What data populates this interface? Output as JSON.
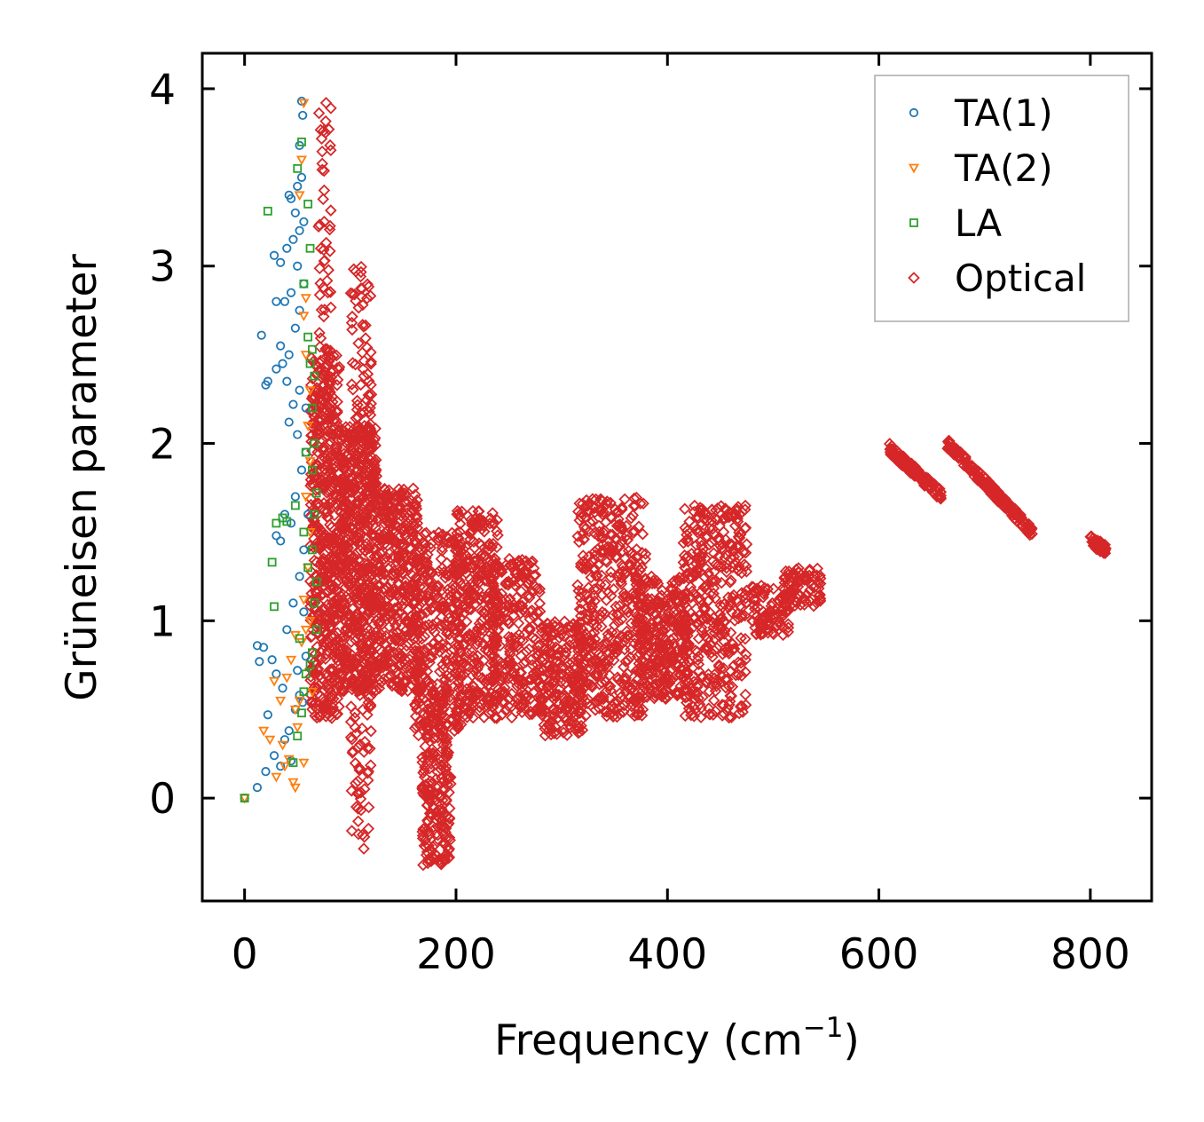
{
  "chart_data": {
    "type": "scatter",
    "title": "",
    "xlabel": "Frequency (cm",
    "xlabel_sup": "−1",
    "xlabel_end": ")",
    "ylabel": "Grüneisen parameter",
    "xlim": [
      -40,
      858
    ],
    "ylim": [
      -0.58,
      4.2
    ],
    "xticks": [
      0,
      200,
      400,
      600,
      800
    ],
    "xtick_labels": [
      "0",
      "200",
      "400",
      "600",
      "800"
    ],
    "yticks": [
      0,
      1,
      2,
      3,
      4
    ],
    "ytick_labels": [
      "0",
      "1",
      "2",
      "3",
      "4"
    ],
    "grid": false,
    "legend_position": "top-right",
    "series": [
      {
        "name": "TA(1)",
        "marker": "circle",
        "color": "#1f77b4",
        "points": [
          [
            0,
            0
          ],
          [
            12,
            0.06
          ],
          [
            20,
            0.15
          ],
          [
            28,
            0.24
          ],
          [
            34,
            0.18
          ],
          [
            38,
            0.33
          ],
          [
            42,
            0.38
          ],
          [
            44,
            0.21
          ],
          [
            48,
            0.5
          ],
          [
            36,
            0.62
          ],
          [
            30,
            0.7
          ],
          [
            26,
            0.78
          ],
          [
            22,
            0.47
          ],
          [
            18,
            0.85
          ],
          [
            12,
            0.86
          ],
          [
            14,
            0.77
          ],
          [
            50,
            0.72
          ],
          [
            52,
            0.58
          ],
          [
            55,
            0.54
          ],
          [
            58,
            0.8
          ],
          [
            40,
            0.95
          ],
          [
            46,
            1.1
          ],
          [
            52,
            1.25
          ],
          [
            56,
            1.4
          ],
          [
            44,
            1.55
          ],
          [
            38,
            1.6
          ],
          [
            30,
            1.48
          ],
          [
            34,
            1.45
          ],
          [
            48,
            1.7
          ],
          [
            54,
            1.85
          ],
          [
            58,
            1.95
          ],
          [
            50,
            2.05
          ],
          [
            42,
            2.12
          ],
          [
            46,
            2.22
          ],
          [
            52,
            2.3
          ],
          [
            40,
            2.35
          ],
          [
            36,
            2.45
          ],
          [
            30,
            2.42
          ],
          [
            20,
            2.33
          ],
          [
            16,
            2.61
          ],
          [
            22,
            2.35
          ],
          [
            34,
            2.55
          ],
          [
            42,
            2.5
          ],
          [
            48,
            2.65
          ],
          [
            52,
            2.75
          ],
          [
            38,
            2.8
          ],
          [
            30,
            2.8
          ],
          [
            44,
            2.85
          ],
          [
            56,
            2.9
          ],
          [
            28,
            3.06
          ],
          [
            34,
            3.02
          ],
          [
            40,
            3.1
          ],
          [
            46,
            3.15
          ],
          [
            52,
            3.2
          ],
          [
            56,
            3.25
          ],
          [
            48,
            3.3
          ],
          [
            42,
            3.4
          ],
          [
            50,
            3.45
          ],
          [
            54,
            3.5
          ],
          [
            44,
            3.38
          ],
          [
            52,
            3.68
          ],
          [
            55,
            3.85
          ],
          [
            54,
            3.93
          ],
          [
            50,
            3.0
          ],
          [
            58,
            2.2
          ],
          [
            60,
            1.6
          ],
          [
            56,
            1.05
          ]
        ]
      },
      {
        "name": "TA(2)",
        "marker": "triangle-down",
        "color": "#ff7f0e",
        "points": [
          [
            0,
            0
          ],
          [
            18,
            0.38
          ],
          [
            24,
            0.33
          ],
          [
            30,
            0.12
          ],
          [
            36,
            0.3
          ],
          [
            42,
            0.22
          ],
          [
            46,
            0.09
          ],
          [
            48,
            0.06
          ],
          [
            50,
            0.4
          ],
          [
            52,
            0.55
          ],
          [
            28,
            0.66
          ],
          [
            34,
            0.55
          ],
          [
            40,
            0.68
          ],
          [
            44,
            0.78
          ],
          [
            48,
            0.92
          ],
          [
            54,
            0.88
          ],
          [
            58,
            0.95
          ],
          [
            62,
            1.0
          ],
          [
            56,
            1.12
          ],
          [
            60,
            1.3
          ],
          [
            62,
            1.5
          ],
          [
            58,
            1.7
          ],
          [
            62,
            1.9
          ],
          [
            60,
            2.1
          ],
          [
            62,
            2.3
          ],
          [
            58,
            2.5
          ],
          [
            56,
            2.72
          ],
          [
            58,
            2.82
          ],
          [
            52,
            3.4
          ],
          [
            54,
            3.6
          ],
          [
            56,
            3.92
          ],
          [
            48,
            0.5
          ],
          [
            38,
            0.18
          ],
          [
            64,
            0.6
          ],
          [
            56,
            0.2
          ]
        ]
      },
      {
        "name": "LA",
        "marker": "square",
        "color": "#2ca02c",
        "points": [
          [
            0,
            0
          ],
          [
            22,
            3.31
          ],
          [
            28,
            1.08
          ],
          [
            26,
            1.33
          ],
          [
            30,
            1.55
          ],
          [
            36,
            1.58
          ],
          [
            40,
            1.56
          ],
          [
            46,
            0.2
          ],
          [
            50,
            0.35
          ],
          [
            54,
            0.48
          ],
          [
            56,
            0.6
          ],
          [
            58,
            0.7
          ],
          [
            62,
            0.75
          ],
          [
            64,
            0.82
          ],
          [
            66,
            1.1
          ],
          [
            68,
            1.22
          ],
          [
            64,
            1.4
          ],
          [
            66,
            1.6
          ],
          [
            68,
            1.72
          ],
          [
            64,
            1.85
          ],
          [
            66,
            2.0
          ],
          [
            64,
            2.2
          ],
          [
            66,
            2.38
          ],
          [
            64,
            2.53
          ],
          [
            60,
            2.6
          ],
          [
            56,
            2.9
          ],
          [
            62,
            3.1
          ],
          [
            60,
            3.35
          ],
          [
            50,
            3.55
          ],
          [
            54,
            3.7
          ],
          [
            58,
            1.95
          ],
          [
            60,
            1.3
          ],
          [
            52,
            0.9
          ],
          [
            56,
            1.5
          ],
          [
            62,
            2.45
          ],
          [
            48,
            1.65
          ],
          [
            68,
            0.95
          ]
        ]
      },
      {
        "name": "Optical",
        "marker": "diamond",
        "color": "#d62728",
        "clusters": [
          {
            "x": [
              62,
              90
            ],
            "y": [
              0.45,
              2.5
            ],
            "n": 520
          },
          {
            "x": [
              70,
              82
            ],
            "y": [
              2.4,
              3.98
            ],
            "n": 50
          },
          {
            "x": [
              90,
              125
            ],
            "y": [
              0.6,
              2.1
            ],
            "n": 620
          },
          {
            "x": [
              100,
              120
            ],
            "y": [
              1.9,
              3.0
            ],
            "n": 70
          },
          {
            "x": [
              100,
              120
            ],
            "y": [
              -0.3,
              0.6
            ],
            "n": 55
          },
          {
            "x": [
              125,
              165
            ],
            "y": [
              0.6,
              1.75
            ],
            "n": 380
          },
          {
            "x": [
              160,
              205
            ],
            "y": [
              0.35,
              1.5
            ],
            "n": 320
          },
          {
            "x": [
              168,
              195
            ],
            "y": [
              -0.38,
              0.5
            ],
            "n": 200
          },
          {
            "x": [
              200,
              240
            ],
            "y": [
              0.45,
              1.62
            ],
            "n": 330
          },
          {
            "x": [
              235,
              280
            ],
            "y": [
              0.45,
              1.35
            ],
            "n": 260
          },
          {
            "x": [
              280,
              320
            ],
            "y": [
              0.35,
              1.0
            ],
            "n": 220
          },
          {
            "x": [
              315,
              380
            ],
            "y": [
              0.45,
              1.7
            ],
            "n": 420
          },
          {
            "x": [
              370,
              420
            ],
            "y": [
              0.55,
              1.25
            ],
            "n": 320
          },
          {
            "x": [
              415,
              475
            ],
            "y": [
              0.45,
              1.65
            ],
            "n": 380
          },
          {
            "x": [
              480,
              515
            ],
            "y": [
              0.92,
              1.2
            ],
            "n": 90
          },
          {
            "x": [
              510,
              545
            ],
            "y": [
              1.08,
              1.3
            ],
            "n": 80
          }
        ],
        "bands": [
          {
            "x0": 610,
            "y0": 1.97,
            "x1": 660,
            "y1": 1.7,
            "n": 130
          },
          {
            "x0": 665,
            "y0": 2.0,
            "x1": 745,
            "y1": 1.5,
            "n": 190
          },
          {
            "x0": 800,
            "y0": 1.45,
            "x1": 815,
            "y1": 1.4,
            "n": 60
          }
        ]
      }
    ]
  }
}
